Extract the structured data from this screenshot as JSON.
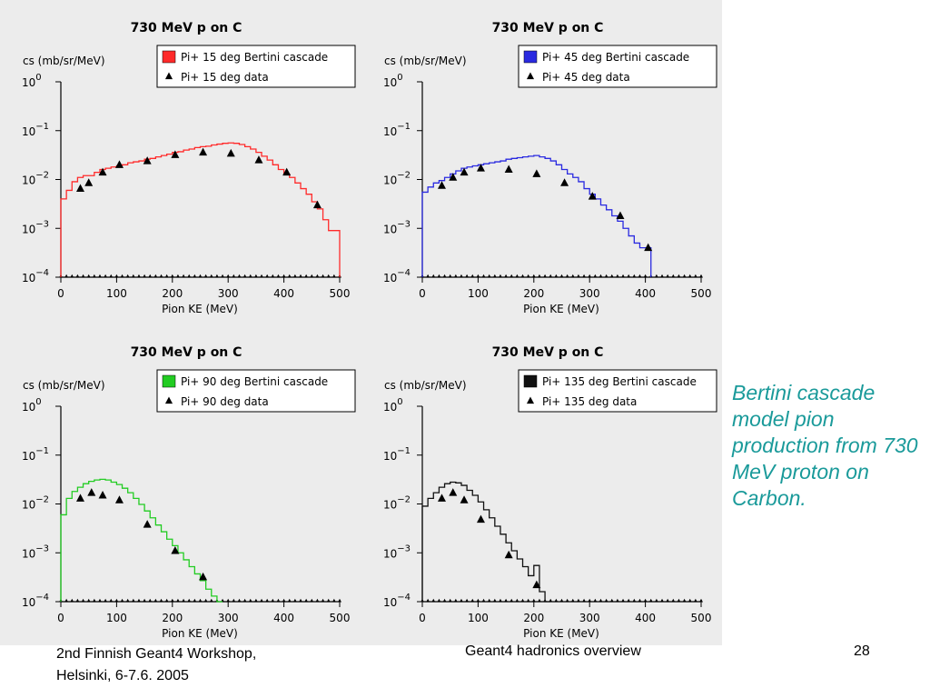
{
  "side_note": "Bertini cascade model pion production from 730 MeV proton on Carbon.",
  "footer": {
    "left_line1": "2nd Finnish Geant4 Workshop,",
    "left_line2": "Helsinki, 6-7.6. 2005",
    "center": "Geant4 hadronics overview",
    "page": "28"
  },
  "chart_data": [
    {
      "type": "line",
      "title": "730 MeV p on C",
      "ylabel": "cs (mb/sr/MeV)",
      "xlabel": "Pion KE (MeV)",
      "yscale": "log",
      "xlim": [
        0,
        500
      ],
      "ylim": [
        0.0001,
        1
      ],
      "x_ticks": [
        "0",
        "100",
        "200",
        "300",
        "400",
        "500"
      ],
      "grid": false,
      "legend_position": "top-right",
      "series": [
        {
          "name": "Pi+ 15 deg Bertini cascade",
          "style": "step",
          "color": "#ff2a2a",
          "x": [
            0,
            10,
            20,
            30,
            40,
            50,
            60,
            70,
            80,
            90,
            100,
            110,
            120,
            130,
            140,
            150,
            160,
            170,
            180,
            190,
            200,
            210,
            220,
            230,
            240,
            250,
            260,
            270,
            280,
            290,
            300,
            310,
            320,
            330,
            340,
            350,
            360,
            370,
            380,
            390,
            400,
            410,
            420,
            430,
            440,
            450,
            460,
            470,
            480,
            490
          ],
          "y": [
            0.004,
            0.006,
            0.009,
            0.011,
            0.012,
            0.012,
            0.014,
            0.016,
            0.017,
            0.018,
            0.019,
            0.02,
            0.022,
            0.023,
            0.024,
            0.026,
            0.027,
            0.029,
            0.031,
            0.033,
            0.036,
            0.037,
            0.04,
            0.042,
            0.045,
            0.047,
            0.048,
            0.051,
            0.053,
            0.055,
            0.056,
            0.055,
            0.052,
            0.047,
            0.042,
            0.036,
            0.03,
            0.025,
            0.02,
            0.016,
            0.013,
            0.011,
            0.0085,
            0.0065,
            0.005,
            0.0035,
            0.0025,
            0.0015,
            0.0009,
            0.0009
          ]
        },
        {
          "name": "Pi+ 15 deg data",
          "style": "marker",
          "x": [
            35,
            50,
            75,
            105,
            155,
            205,
            255,
            305,
            355,
            405,
            460
          ],
          "y": [
            0.0065,
            0.0085,
            0.014,
            0.02,
            0.024,
            0.032,
            0.036,
            0.034,
            0.025,
            0.014,
            0.003
          ]
        }
      ]
    },
    {
      "type": "line",
      "title": "730 MeV p on C",
      "ylabel": "cs (mb/sr/MeV)",
      "xlabel": "Pion KE (MeV)",
      "yscale": "log",
      "xlim": [
        0,
        500
      ],
      "ylim": [
        0.0001,
        1
      ],
      "x_ticks": [
        "0",
        "100",
        "200",
        "300",
        "400",
        "500"
      ],
      "grid": false,
      "legend_position": "top-right",
      "series": [
        {
          "name": "Pi+ 45 deg Bertini cascade",
          "style": "step",
          "color": "#2a2ae0",
          "x": [
            0,
            10,
            20,
            30,
            40,
            50,
            60,
            70,
            80,
            90,
            100,
            110,
            120,
            130,
            140,
            150,
            160,
            170,
            180,
            190,
            200,
            210,
            220,
            230,
            240,
            250,
            260,
            270,
            280,
            290,
            300,
            310,
            320,
            330,
            340,
            350,
            360,
            370,
            380,
            390,
            400
          ],
          "y": [
            0.0055,
            0.007,
            0.0085,
            0.0095,
            0.011,
            0.013,
            0.015,
            0.017,
            0.018,
            0.019,
            0.02,
            0.021,
            0.022,
            0.023,
            0.024,
            0.026,
            0.027,
            0.028,
            0.029,
            0.03,
            0.031,
            0.029,
            0.027,
            0.024,
            0.02,
            0.016,
            0.013,
            0.011,
            0.009,
            0.0065,
            0.005,
            0.004,
            0.003,
            0.0024,
            0.0018,
            0.0014,
            0.001,
            0.0007,
            0.0005,
            0.0004,
            0.0004
          ]
        },
        {
          "name": "Pi+ 45 deg data",
          "style": "marker",
          "x": [
            35,
            55,
            75,
            105,
            155,
            205,
            255,
            305,
            355,
            405
          ],
          "y": [
            0.0075,
            0.011,
            0.014,
            0.017,
            0.016,
            0.013,
            0.0085,
            0.0045,
            0.0018,
            0.0004
          ]
        }
      ]
    },
    {
      "type": "line",
      "title": "730 MeV p on C",
      "ylabel": "cs (mb/sr/MeV)",
      "xlabel": "Pion KE (MeV)",
      "yscale": "log",
      "xlim": [
        0,
        500
      ],
      "ylim": [
        0.0001,
        1
      ],
      "x_ticks": [
        "0",
        "100",
        "200",
        "300",
        "400",
        "500"
      ],
      "grid": false,
      "legend_position": "top-right",
      "series": [
        {
          "name": "Pi+ 90 deg Bertini cascade",
          "style": "step",
          "color": "#22cc22",
          "x": [
            0,
            10,
            20,
            30,
            40,
            50,
            60,
            70,
            80,
            90,
            100,
            110,
            120,
            130,
            140,
            150,
            160,
            170,
            180,
            190,
            200,
            210,
            220,
            230,
            240,
            250,
            260,
            270,
            280
          ],
          "y": [
            0.006,
            0.013,
            0.018,
            0.022,
            0.026,
            0.029,
            0.031,
            0.032,
            0.031,
            0.028,
            0.025,
            0.021,
            0.017,
            0.013,
            0.0098,
            0.0072,
            0.0052,
            0.0037,
            0.0027,
            0.0019,
            0.0014,
            0.001,
            0.00072,
            0.00052,
            0.00037,
            0.00027,
            0.00018,
            0.00013,
            0.0001
          ]
        },
        {
          "name": "Pi+ 90 deg data",
          "style": "marker",
          "x": [
            35,
            55,
            75,
            105,
            155,
            205,
            255
          ],
          "y": [
            0.013,
            0.017,
            0.015,
            0.012,
            0.0038,
            0.0011,
            0.00032
          ]
        }
      ]
    },
    {
      "type": "line",
      "title": "730 MeV p on C",
      "ylabel": "cs (mb/sr/MeV)",
      "xlabel": "Pion KE (MeV)",
      "yscale": "log",
      "xlim": [
        0,
        500
      ],
      "ylim": [
        0.0001,
        1
      ],
      "x_ticks": [
        "0",
        "100",
        "200",
        "300",
        "400",
        "500"
      ],
      "grid": false,
      "legend_position": "top-right",
      "series": [
        {
          "name": "Pi+ 135 deg Bertini cascade",
          "style": "step",
          "color": "#111111",
          "x": [
            0,
            10,
            20,
            30,
            40,
            50,
            60,
            70,
            80,
            90,
            100,
            110,
            120,
            130,
            140,
            150,
            160,
            170,
            180,
            190,
            200,
            210,
            220
          ],
          "y": [
            0.009,
            0.013,
            0.017,
            0.022,
            0.026,
            0.028,
            0.027,
            0.024,
            0.019,
            0.015,
            0.011,
            0.0076,
            0.0052,
            0.0035,
            0.0024,
            0.0016,
            0.0011,
            0.00075,
            0.00052,
            0.00034,
            0.00055,
            0.00016,
            0.0001
          ]
        },
        {
          "name": "Pi+ 135 deg data",
          "style": "marker",
          "x": [
            35,
            55,
            75,
            105,
            155,
            205
          ],
          "y": [
            0.013,
            0.017,
            0.012,
            0.0048,
            0.0009,
            0.00022
          ]
        }
      ]
    }
  ]
}
